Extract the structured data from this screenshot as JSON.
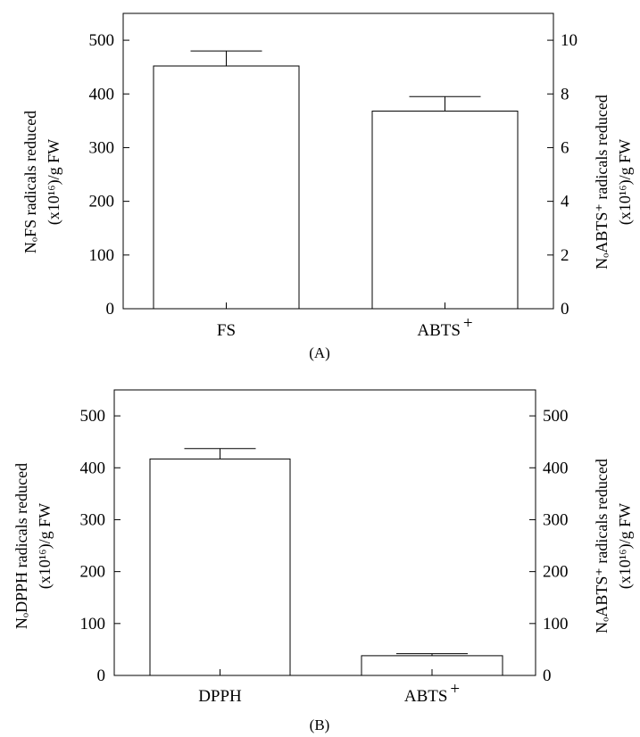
{
  "chart_data": [
    {
      "panel": "(A)",
      "type": "bar",
      "categories": [
        "FS",
        "ABTS"
      ],
      "category_superscripts": [
        "",
        "+"
      ],
      "values": [
        452,
        368
      ],
      "errors": [
        28,
        27
      ],
      "ylim_left": [
        0,
        550
      ],
      "ylim_right": [
        0,
        11
      ],
      "yticks_left": [
        "0",
        "100",
        "200",
        "300",
        "400",
        "500"
      ],
      "yticks_right": [
        "0",
        "2",
        "4",
        "6",
        "8",
        "10"
      ],
      "ylabel_left": [
        "NₒFS radicals reduced",
        "(x10¹⁶)/g FW"
      ],
      "ylabel_right": [
        "NₒABTS⁺ radicals reduced",
        "(x10¹⁶)/g FW"
      ]
    },
    {
      "panel": "(B)",
      "type": "bar",
      "categories": [
        "DPPH",
        "ABTS"
      ],
      "category_superscripts": [
        "",
        "+"
      ],
      "values": [
        417,
        38
      ],
      "errors": [
        20,
        4
      ],
      "ylim_left": [
        0,
        550
      ],
      "ylim_right": [
        0,
        550
      ],
      "yticks_left": [
        "0",
        "100",
        "200",
        "300",
        "400",
        "500"
      ],
      "yticks_right": [
        "0",
        "100",
        "200",
        "300",
        "400",
        "500"
      ],
      "ylabel_left": [
        "NₒDPPH radicals reduced",
        "(x10¹⁶)/g FW"
      ],
      "ylabel_right": [
        "NₒABTS⁺ radicals reduced",
        "(x10¹⁶)/g FW"
      ]
    }
  ]
}
